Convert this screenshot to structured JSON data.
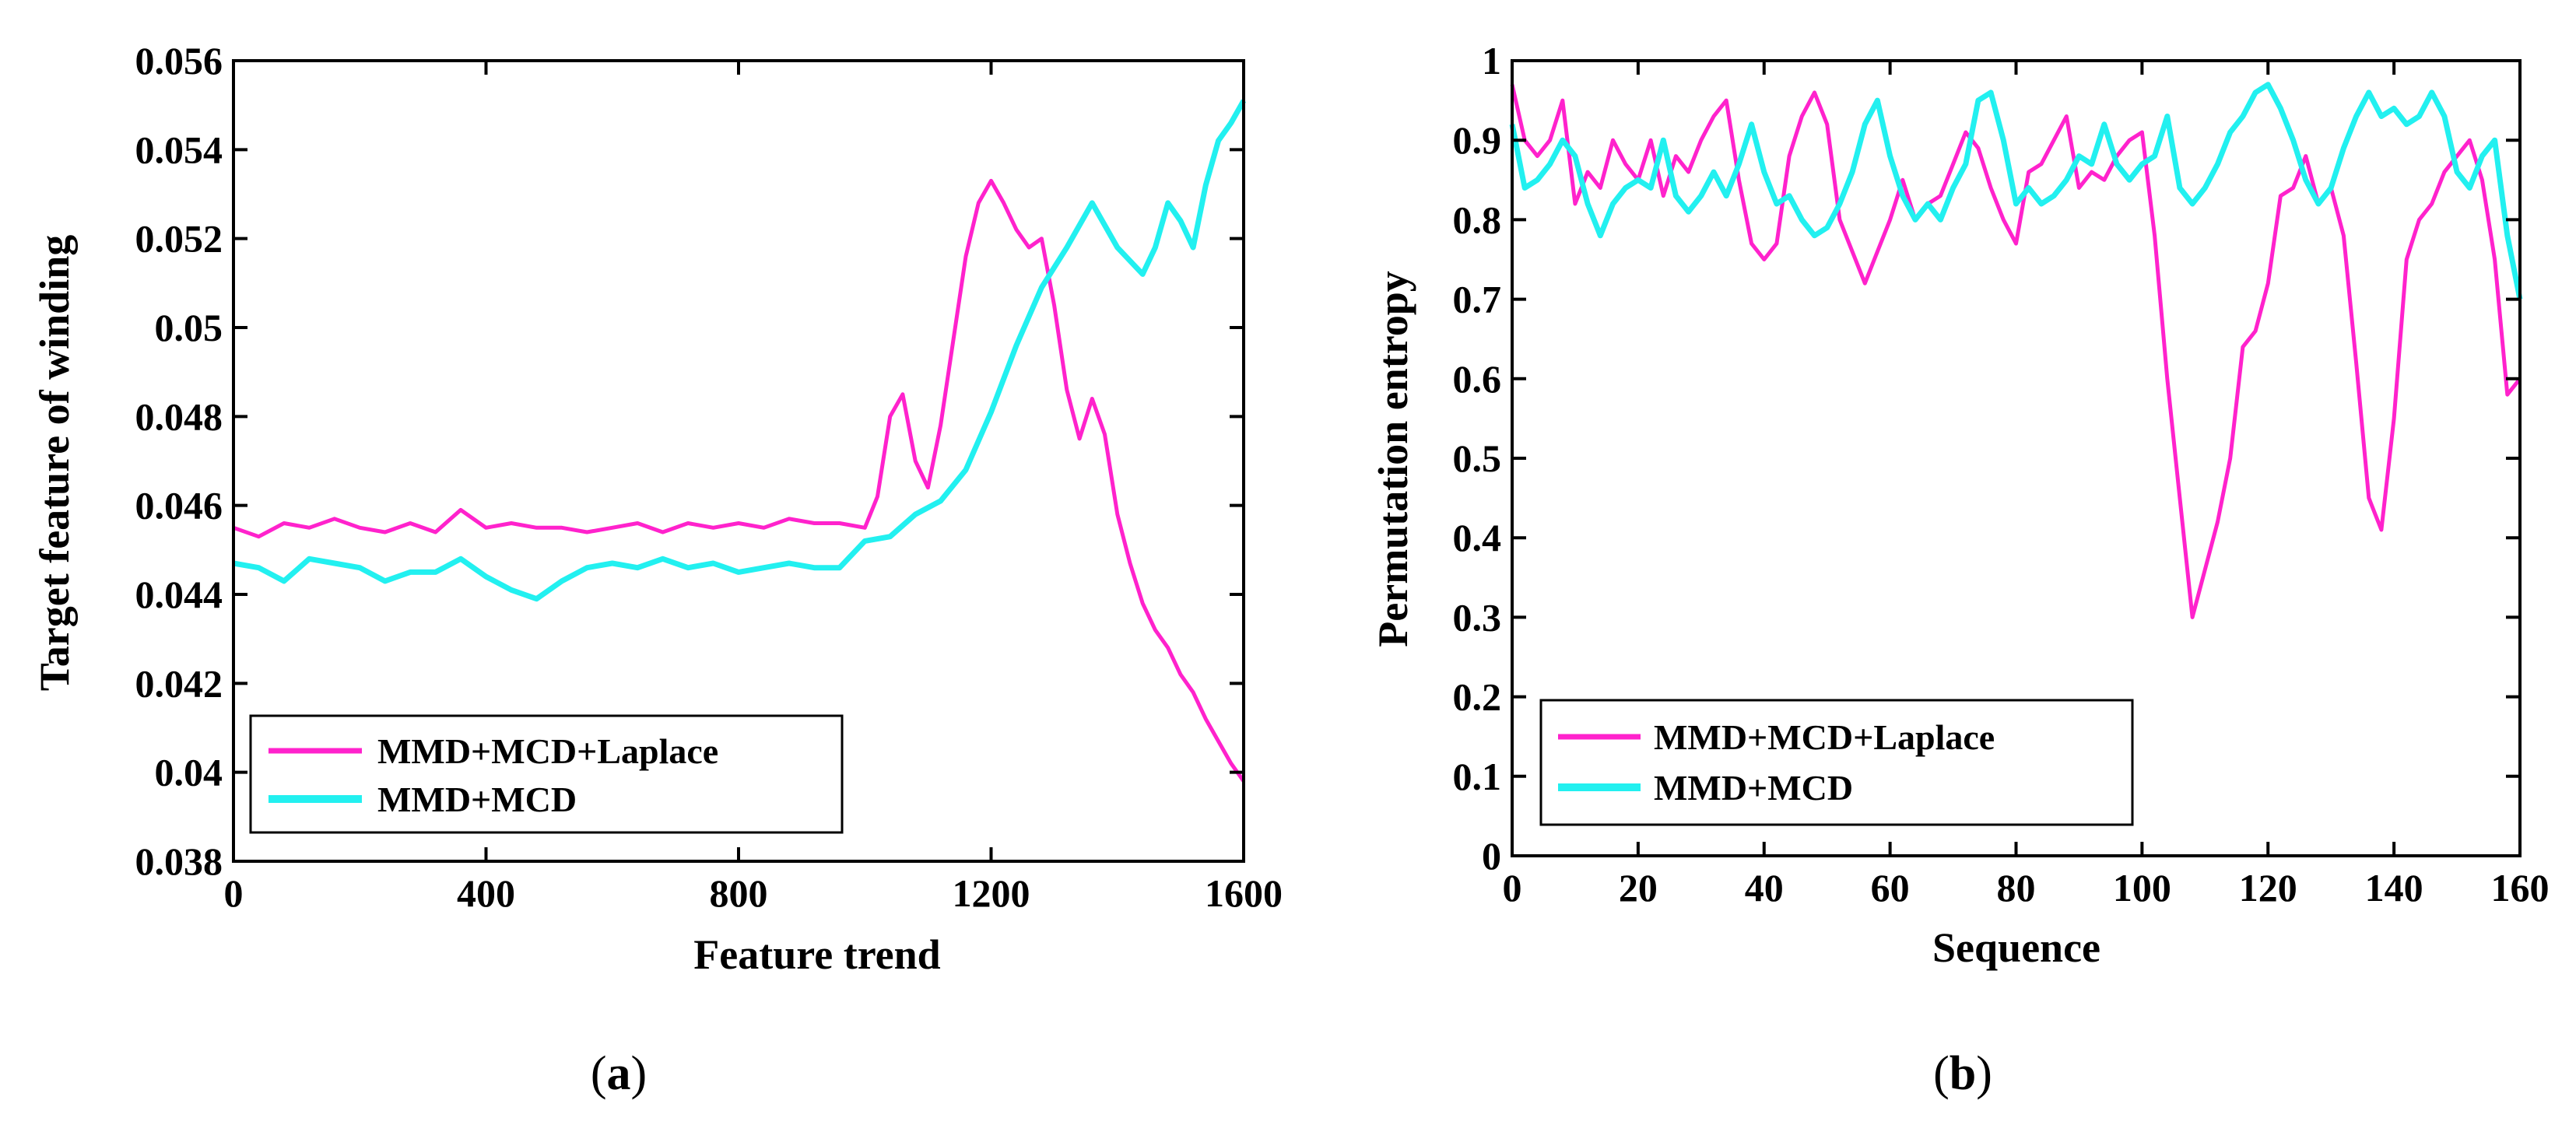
{
  "chart_data": [
    {
      "type": "line",
      "panel_label_open": "(",
      "panel_label_letter": "a",
      "panel_label_close": ")",
      "xlabel": "Feature trend",
      "ylabel": "Target feature of winding",
      "xlim": [
        0,
        1600
      ],
      "ylim": [
        0.038,
        0.056
      ],
      "xticks": [
        0,
        400,
        800,
        1200,
        1600
      ],
      "xtick_labels": [
        "0",
        "400",
        "800",
        "1200",
        "1600"
      ],
      "yticks": [
        0.038,
        0.04,
        0.042,
        0.044,
        0.046,
        0.048,
        0.05,
        0.052,
        0.054,
        0.056
      ],
      "ytick_labels": [
        "0.038",
        "0.04",
        "0.042",
        "0.044",
        "0.046",
        "0.048",
        "0.05",
        "0.052",
        "0.054",
        "0.056"
      ],
      "grid": false,
      "legend_position": "bottom-left",
      "series": [
        {
          "name": "MMD+MCD+Laplace",
          "color": "#ff22cc",
          "x": [
            0,
            40,
            80,
            120,
            160,
            200,
            240,
            280,
            320,
            360,
            400,
            440,
            480,
            520,
            560,
            600,
            640,
            680,
            720,
            760,
            800,
            840,
            880,
            920,
            960,
            1000,
            1020,
            1040,
            1060,
            1080,
            1100,
            1120,
            1140,
            1160,
            1180,
            1200,
            1220,
            1240,
            1260,
            1280,
            1300,
            1320,
            1340,
            1360,
            1380,
            1400,
            1420,
            1440,
            1460,
            1480,
            1500,
            1520,
            1540,
            1560,
            1580,
            1600
          ],
          "y": [
            0.0455,
            0.0453,
            0.0456,
            0.0455,
            0.0457,
            0.0455,
            0.0454,
            0.0456,
            0.0454,
            0.0459,
            0.0455,
            0.0456,
            0.0455,
            0.0455,
            0.0454,
            0.0455,
            0.0456,
            0.0454,
            0.0456,
            0.0455,
            0.0456,
            0.0455,
            0.0457,
            0.0456,
            0.0456,
            0.0455,
            0.0462,
            0.048,
            0.0485,
            0.047,
            0.0464,
            0.0478,
            0.0497,
            0.0516,
            0.0528,
            0.0533,
            0.0528,
            0.0522,
            0.0518,
            0.052,
            0.0505,
            0.0486,
            0.0475,
            0.0484,
            0.0476,
            0.0458,
            0.0447,
            0.0438,
            0.0432,
            0.0428,
            0.0422,
            0.0418,
            0.0412,
            0.0407,
            0.0402,
            0.0398
          ]
        },
        {
          "name": "MMD+MCD",
          "color": "#22f0f0",
          "x": [
            0,
            40,
            80,
            120,
            160,
            200,
            240,
            280,
            320,
            360,
            400,
            440,
            480,
            520,
            560,
            600,
            640,
            680,
            720,
            760,
            800,
            840,
            880,
            920,
            960,
            1000,
            1040,
            1080,
            1120,
            1160,
            1200,
            1240,
            1280,
            1320,
            1360,
            1400,
            1440,
            1460,
            1480,
            1500,
            1520,
            1540,
            1560,
            1580,
            1600
          ],
          "y": [
            0.0447,
            0.0446,
            0.0443,
            0.0448,
            0.0447,
            0.0446,
            0.0443,
            0.0445,
            0.0445,
            0.0448,
            0.0444,
            0.0441,
            0.0439,
            0.0443,
            0.0446,
            0.0447,
            0.0446,
            0.0448,
            0.0446,
            0.0447,
            0.0445,
            0.0446,
            0.0447,
            0.0446,
            0.0446,
            0.0452,
            0.0453,
            0.0458,
            0.0461,
            0.0468,
            0.0481,
            0.0496,
            0.0509,
            0.0518,
            0.0528,
            0.0518,
            0.0512,
            0.0518,
            0.0528,
            0.0524,
            0.0518,
            0.0532,
            0.0542,
            0.0546,
            0.0551
          ]
        }
      ]
    },
    {
      "type": "line",
      "panel_label_open": "(",
      "panel_label_letter": "b",
      "panel_label_close": ")",
      "xlabel": "Sequence",
      "ylabel": "Permutation entropy",
      "xlim": [
        0,
        160
      ],
      "ylim": [
        0,
        1
      ],
      "xticks": [
        0,
        20,
        40,
        60,
        80,
        100,
        120,
        140,
        160
      ],
      "xtick_labels": [
        "0",
        "20",
        "40",
        "60",
        "80",
        "100",
        "120",
        "140",
        "160"
      ],
      "yticks": [
        0,
        0.1,
        0.2,
        0.3,
        0.4,
        0.5,
        0.6,
        0.7,
        0.8,
        0.9,
        1
      ],
      "ytick_labels": [
        "0",
        "0.1",
        "0.2",
        "0.3",
        "0.4",
        "0.5",
        "0.6",
        "0.7",
        "0.8",
        "0.9",
        "1"
      ],
      "grid": false,
      "legend_position": "bottom-left",
      "series": [
        {
          "name": "MMD+MCD+Laplace",
          "color": "#ff22cc",
          "x": [
            0,
            2,
            4,
            6,
            8,
            10,
            12,
            14,
            16,
            18,
            20,
            22,
            24,
            26,
            28,
            30,
            32,
            34,
            36,
            38,
            40,
            42,
            44,
            46,
            48,
            50,
            52,
            54,
            56,
            58,
            60,
            62,
            64,
            66,
            68,
            70,
            72,
            74,
            76,
            78,
            80,
            82,
            84,
            86,
            88,
            90,
            92,
            94,
            96,
            98,
            100,
            102,
            104,
            106,
            108,
            110,
            112,
            114,
            116,
            118,
            120,
            122,
            124,
            126,
            128,
            130,
            132,
            134,
            136,
            138,
            140,
            142,
            144,
            146,
            148,
            150,
            152,
            154,
            156,
            158,
            160
          ],
          "y": [
            0.97,
            0.9,
            0.88,
            0.9,
            0.95,
            0.82,
            0.86,
            0.84,
            0.9,
            0.87,
            0.85,
            0.9,
            0.83,
            0.88,
            0.86,
            0.9,
            0.93,
            0.95,
            0.85,
            0.77,
            0.75,
            0.77,
            0.88,
            0.93,
            0.96,
            0.92,
            0.8,
            0.76,
            0.72,
            0.76,
            0.8,
            0.85,
            0.8,
            0.82,
            0.83,
            0.87,
            0.91,
            0.89,
            0.84,
            0.8,
            0.77,
            0.86,
            0.87,
            0.9,
            0.93,
            0.84,
            0.86,
            0.85,
            0.88,
            0.9,
            0.91,
            0.78,
            0.6,
            0.45,
            0.3,
            0.36,
            0.42,
            0.5,
            0.64,
            0.66,
            0.72,
            0.83,
            0.84,
            0.88,
            0.82,
            0.84,
            0.78,
            0.62,
            0.45,
            0.41,
            0.55,
            0.75,
            0.8,
            0.82,
            0.86,
            0.88,
            0.9,
            0.85,
            0.75,
            0.58,
            0.6
          ]
        },
        {
          "name": "MMD+MCD",
          "color": "#22f0f0",
          "x": [
            0,
            2,
            4,
            6,
            8,
            10,
            12,
            14,
            16,
            18,
            20,
            22,
            24,
            26,
            28,
            30,
            32,
            34,
            36,
            38,
            40,
            42,
            44,
            46,
            48,
            50,
            52,
            54,
            56,
            58,
            60,
            62,
            64,
            66,
            68,
            70,
            72,
            74,
            76,
            78,
            80,
            82,
            84,
            86,
            88,
            90,
            92,
            94,
            96,
            98,
            100,
            102,
            104,
            106,
            108,
            110,
            112,
            114,
            116,
            118,
            120,
            122,
            124,
            126,
            128,
            130,
            132,
            134,
            136,
            138,
            140,
            142,
            144,
            146,
            148,
            150,
            152,
            154,
            156,
            158,
            160
          ],
          "y": [
            0.92,
            0.84,
            0.85,
            0.87,
            0.9,
            0.88,
            0.82,
            0.78,
            0.82,
            0.84,
            0.85,
            0.84,
            0.9,
            0.83,
            0.81,
            0.83,
            0.86,
            0.83,
            0.87,
            0.92,
            0.86,
            0.82,
            0.83,
            0.8,
            0.78,
            0.79,
            0.82,
            0.86,
            0.92,
            0.95,
            0.88,
            0.83,
            0.8,
            0.82,
            0.8,
            0.84,
            0.87,
            0.95,
            0.96,
            0.9,
            0.82,
            0.84,
            0.82,
            0.83,
            0.85,
            0.88,
            0.87,
            0.92,
            0.87,
            0.85,
            0.87,
            0.88,
            0.93,
            0.84,
            0.82,
            0.84,
            0.87,
            0.91,
            0.93,
            0.96,
            0.97,
            0.94,
            0.9,
            0.85,
            0.82,
            0.84,
            0.89,
            0.93,
            0.96,
            0.93,
            0.94,
            0.92,
            0.93,
            0.96,
            0.93,
            0.86,
            0.84,
            0.88,
            0.9,
            0.78,
            0.7
          ]
        }
      ]
    }
  ]
}
